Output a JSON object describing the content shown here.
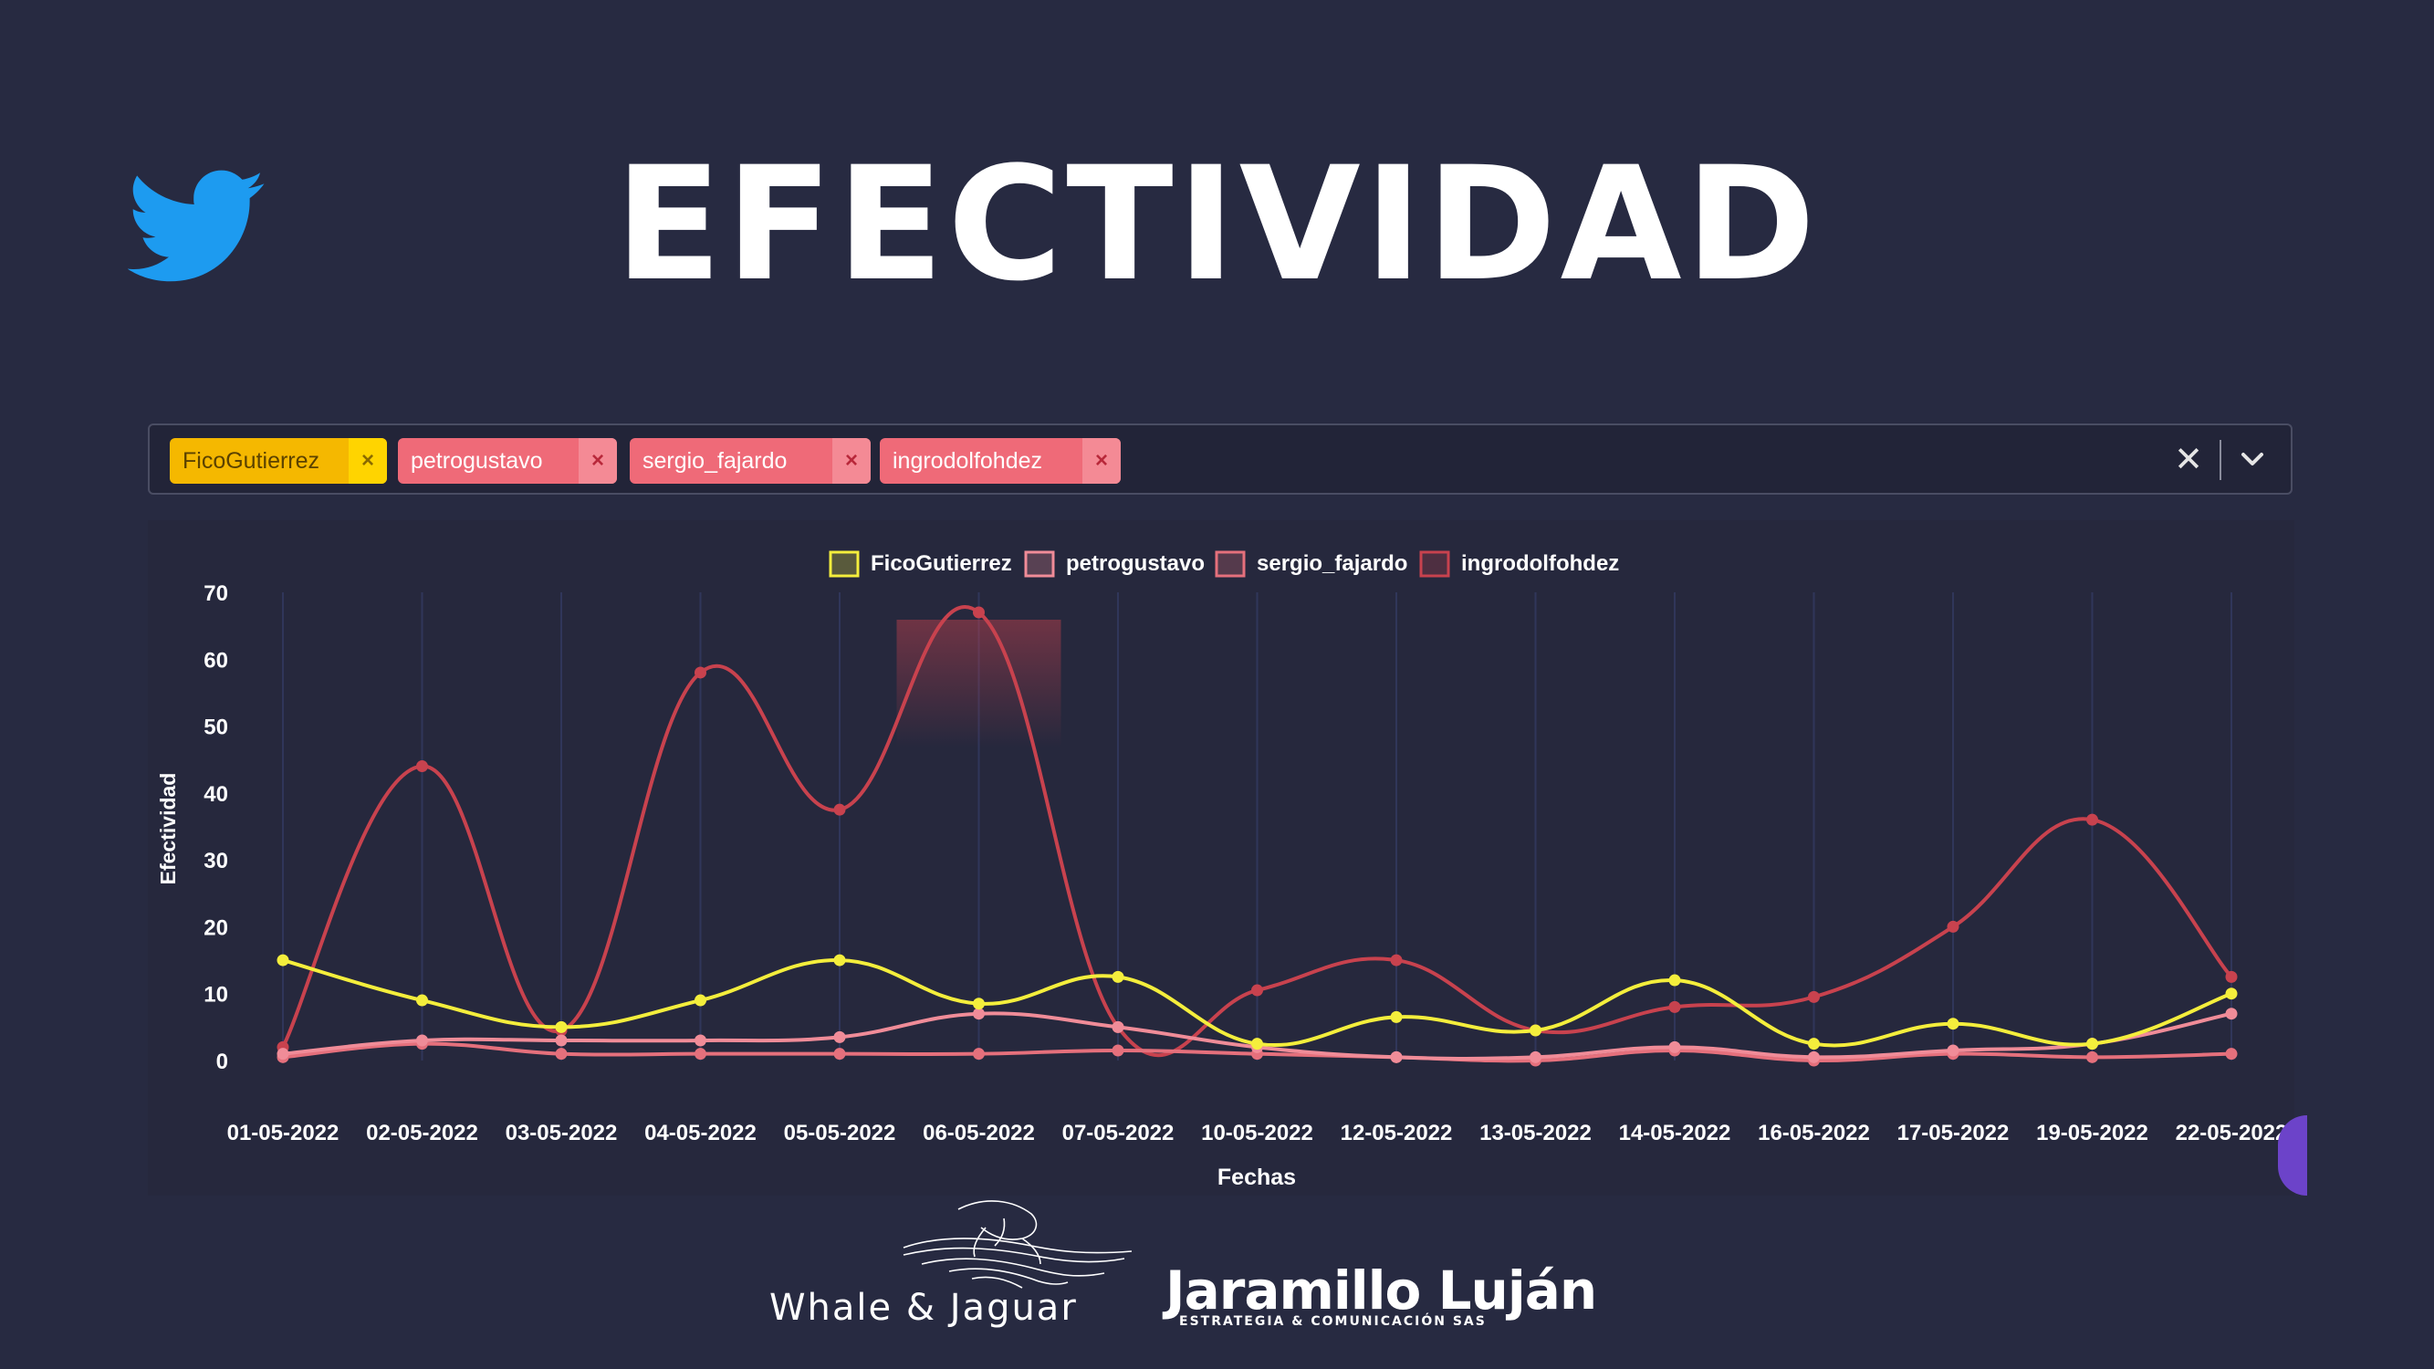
{
  "header": {
    "title": "EFECTIVIDAD"
  },
  "filter": {
    "chips": [
      {
        "label": "FicoGutierrez",
        "bg": "#f5b800",
        "xbg": "#ffd400",
        "xcolor": "#8a6a00",
        "text": "#5b4200"
      },
      {
        "label": "petrogustavo",
        "bg": "#ef6a78",
        "xbg": "#f48a95",
        "xcolor": "#b8283a",
        "text": "#ffffff"
      },
      {
        "label": "sergio_fajardo",
        "bg": "#ef6a78",
        "xbg": "#f48a95",
        "xcolor": "#b8283a",
        "text": "#ffffff"
      },
      {
        "label": "ingrodolfohdez",
        "bg": "#ef6a78",
        "xbg": "#f48a95",
        "xcolor": "#b8283a",
        "text": "#ffffff"
      }
    ],
    "remove_symbol": "×",
    "clear_symbol": "✕"
  },
  "chart_data": {
    "type": "line",
    "ylabel": "Efectividad",
    "xlabel": "Fechas",
    "ylim": [
      0,
      70
    ],
    "yticks": [
      0,
      10,
      20,
      30,
      40,
      50,
      60,
      70
    ],
    "legend_position": "top-center",
    "categories": [
      "01-05-2022",
      "02-05-2022",
      "03-05-2022",
      "04-05-2022",
      "05-05-2022",
      "06-05-2022",
      "07-05-2022",
      "10-05-2022",
      "12-05-2022",
      "13-05-2022",
      "14-05-2022",
      "16-05-2022",
      "17-05-2022",
      "19-05-2022",
      "22-05-2022"
    ],
    "series": [
      {
        "name": "FicoGutierrez",
        "color": "#f4ee3c",
        "values": [
          15,
          9,
          5,
          9,
          15,
          8.5,
          12.5,
          2.5,
          6.5,
          4.5,
          12,
          2.5,
          5.5,
          2.5,
          10
        ]
      },
      {
        "name": "petrogustavo",
        "color": "#f08c98",
        "values": [
          1,
          3,
          3,
          3,
          3.5,
          7,
          5,
          2,
          0.5,
          0.5,
          2,
          0.5,
          1.5,
          2.5,
          7
        ]
      },
      {
        "name": "sergio_fajardo",
        "color": "#e5707c",
        "values": [
          0.5,
          2.5,
          1,
          1,
          1,
          1,
          1.5,
          1,
          0.5,
          0,
          1.5,
          0,
          1,
          0.5,
          1
        ]
      },
      {
        "name": "ingrodolfohdez",
        "color": "#c8424e",
        "values": [
          2,
          44,
          4.5,
          58,
          37.5,
          67,
          5,
          10.5,
          15,
          4.5,
          8,
          9.5,
          20,
          36,
          12.5
        ]
      }
    ]
  },
  "footer": {
    "whale_name": "Whale & Jaguar",
    "jl_name": "Jaramillo Luján",
    "jl_subtitle": "ESTRATEGIA & COMUNICACIÓN SAS"
  }
}
